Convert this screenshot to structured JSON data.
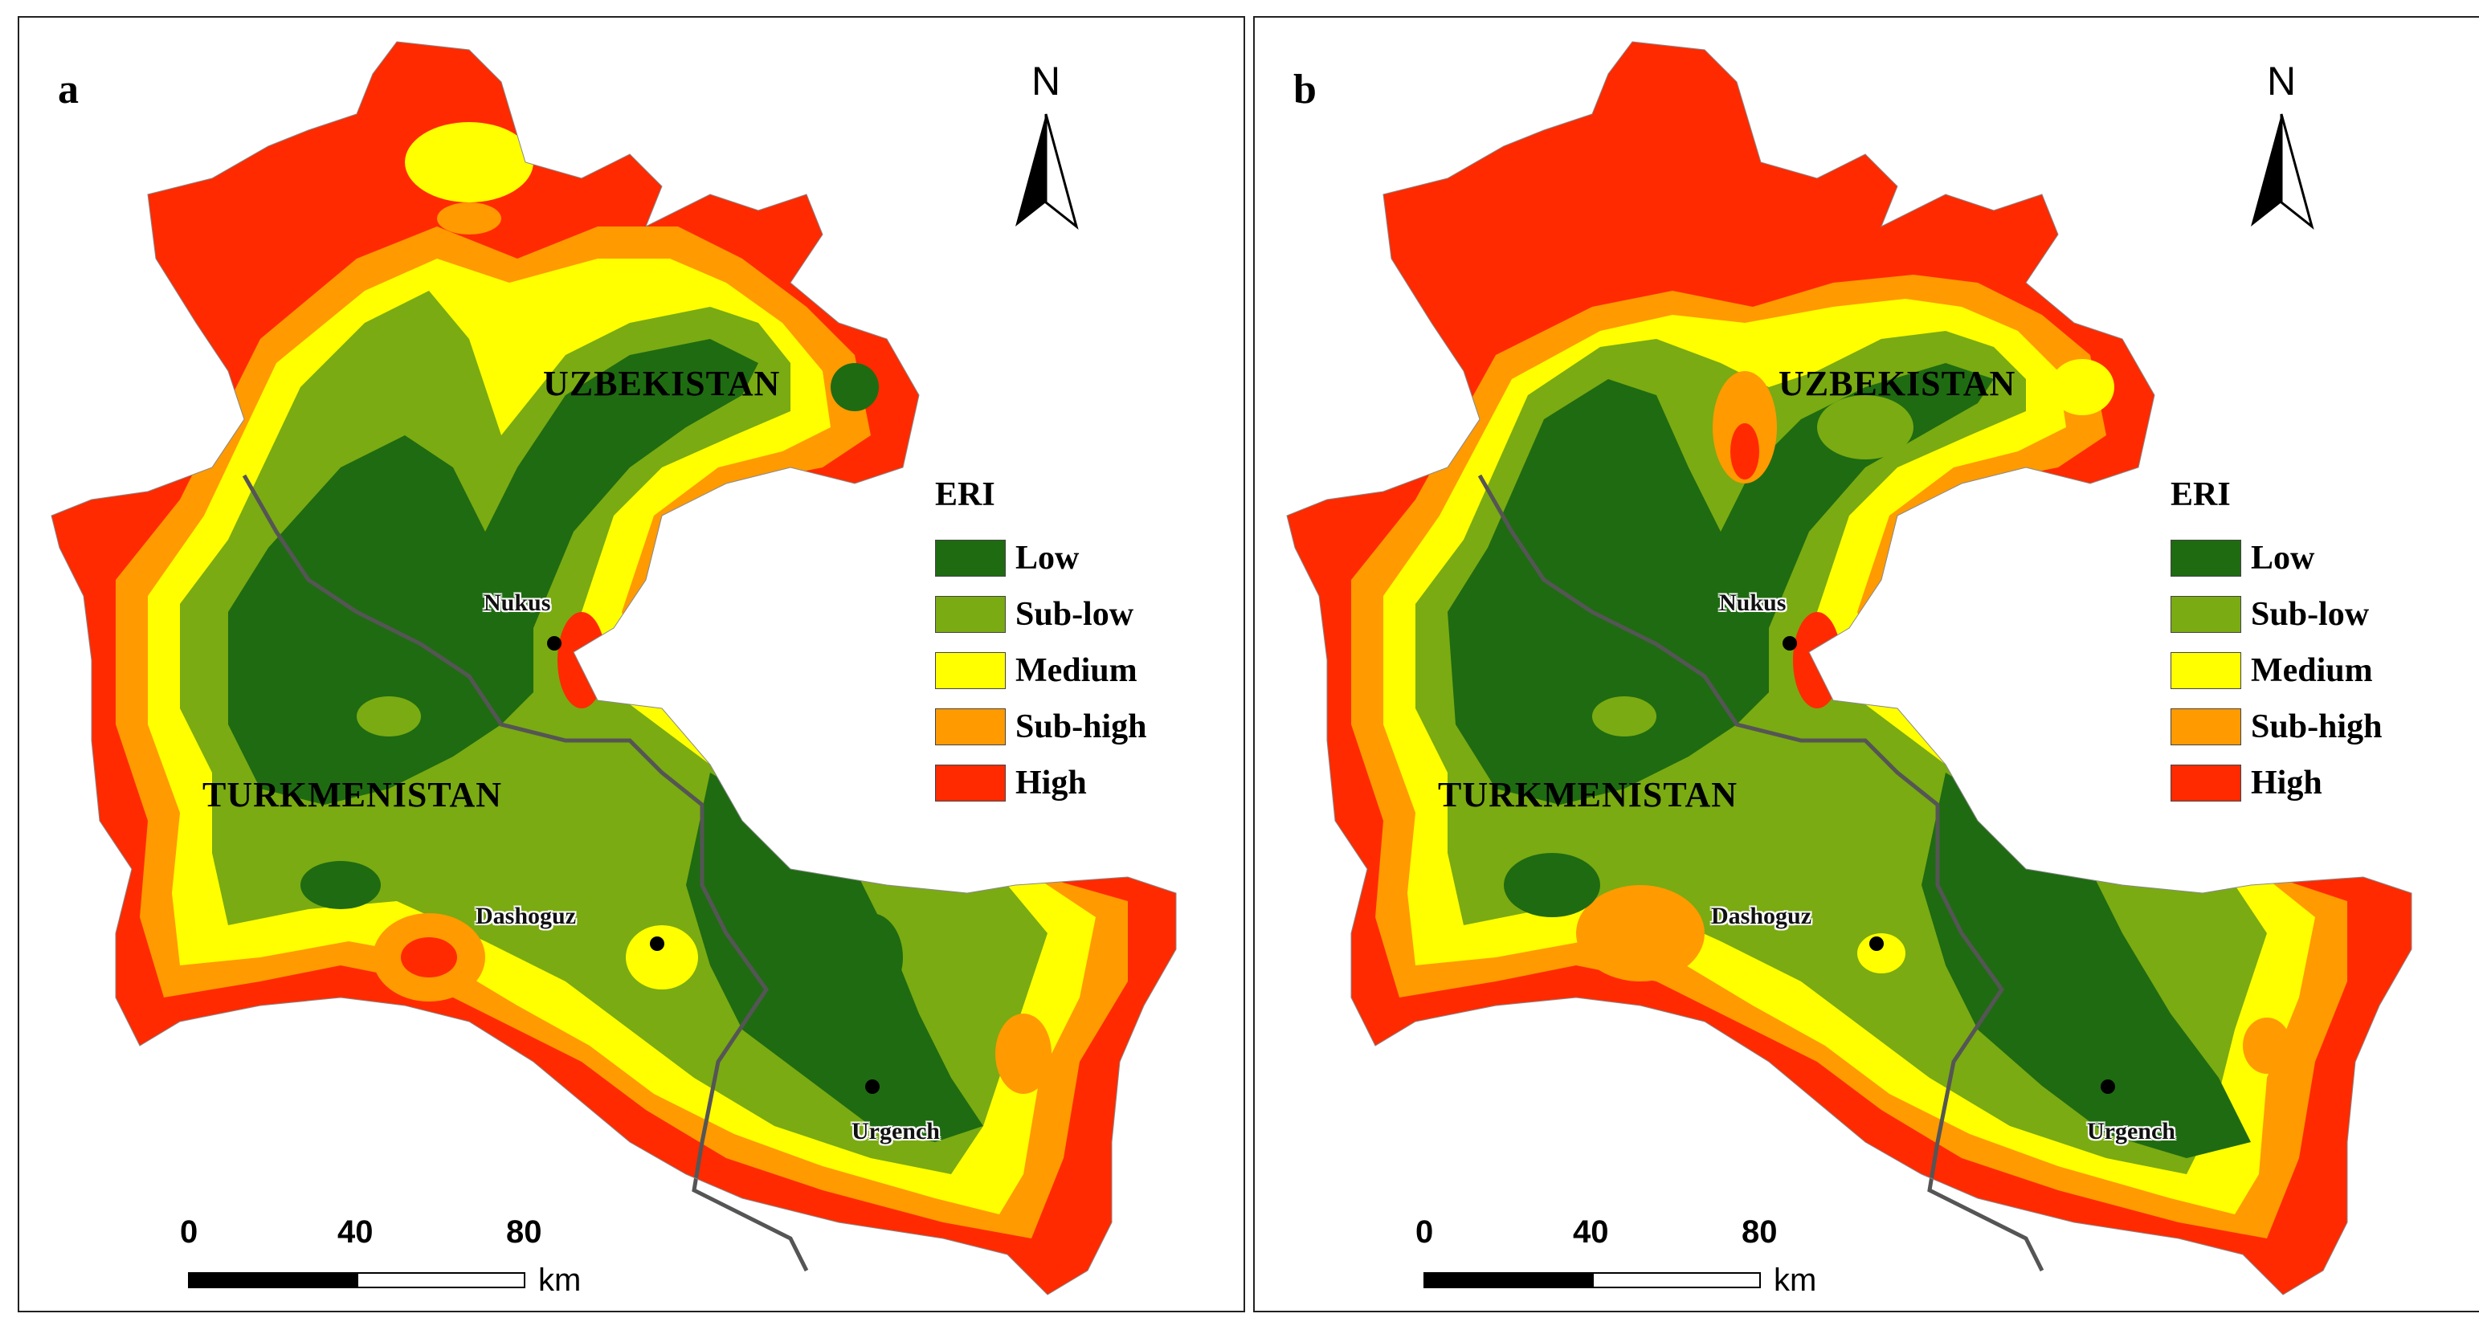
{
  "colors": {
    "low": "#1f6b12",
    "sub_low": "#7aab12",
    "medium": "#ffff00",
    "sub_high": "#ff9a00",
    "high": "#ff2a00",
    "border": "#555555"
  },
  "panels": [
    {
      "label": "a",
      "countries": {
        "uzbekistan": "UZBEKISTAN",
        "turkmenistan": "TURKMENISTAN"
      },
      "cities": {
        "nukus": "Nukus",
        "dashoguz": "Dashoguz",
        "urgench": "Urgench"
      },
      "north": "N",
      "legend": {
        "title": "ERI",
        "items": [
          {
            "label": "Low",
            "icon": "low-swatch"
          },
          {
            "label": "Sub-low",
            "icon": "sub-low-swatch"
          },
          {
            "label": "Medium",
            "icon": "medium-swatch"
          },
          {
            "label": "Sub-high",
            "icon": "sub-high-swatch"
          },
          {
            "label": "High",
            "icon": "high-swatch"
          }
        ]
      },
      "scale": {
        "ticks": [
          "0",
          "40",
          "80"
        ],
        "unit": "km"
      }
    },
    {
      "label": "b",
      "countries": {
        "uzbekistan": "UZBEKISTAN",
        "turkmenistan": "TURKMENISTAN"
      },
      "cities": {
        "nukus": "Nukus",
        "dashoguz": "Dashoguz",
        "urgench": "Urgench"
      },
      "north": "N",
      "legend": {
        "title": "ERI",
        "items": [
          {
            "label": "Low",
            "icon": "low-swatch"
          },
          {
            "label": "Sub-low",
            "icon": "sub-low-swatch"
          },
          {
            "label": "Medium",
            "icon": "medium-swatch"
          },
          {
            "label": "Sub-high",
            "icon": "sub-high-swatch"
          },
          {
            "label": "High",
            "icon": "high-swatch"
          }
        ]
      },
      "scale": {
        "ticks": [
          "0",
          "40",
          "80"
        ],
        "unit": "km"
      }
    }
  ]
}
